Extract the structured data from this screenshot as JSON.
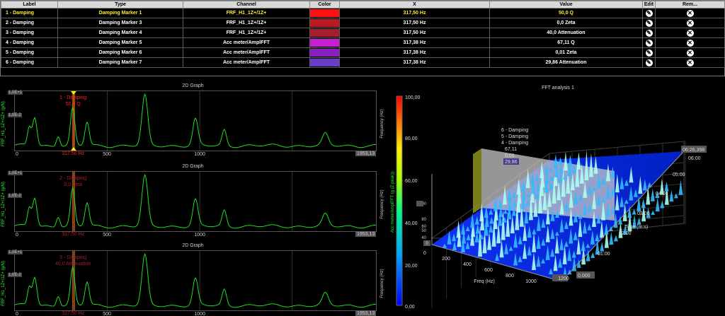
{
  "table": {
    "headers": [
      "Label",
      "Type",
      "Channel",
      "Color",
      "X",
      "Value",
      "Edit",
      "Rem..."
    ],
    "rows": [
      {
        "label": "1 - Damping",
        "type": "Damping Marker 1",
        "channel": "FRF_H1_1Z+/1Z+",
        "color": "#ff1010",
        "x": "317,50 Hz",
        "value": "50,0 Q",
        "selected": true
      },
      {
        "label": "2 - Damping",
        "type": "Damping Marker 3",
        "channel": "FRF_H1_1Z+/1Z+",
        "color": "#bb1a22",
        "x": "317,50 Hz",
        "value": "0,0 Zeta"
      },
      {
        "label": "3 - Damping",
        "type": "Damping Marker 4",
        "channel": "FRF_H1_1Z+/1Z+",
        "color": "#a51f2e",
        "x": "317,50 Hz",
        "value": "40,0 Attenuation"
      },
      {
        "label": "4 - Damping",
        "type": "Damping Marker 5",
        "channel": "Acc meter/AmplFFT",
        "color": "#c41fd0",
        "x": "317,38 Hz",
        "value": "67,11 Q"
      },
      {
        "label": "5 - Damping",
        "type": "Damping Marker 6",
        "channel": "Acc meter/AmplFFT",
        "color": "#8a1fc0",
        "x": "317,38 Hz",
        "value": "0,01 Zeta"
      },
      {
        "label": "6 - Damping",
        "type": "Damping Marker 7",
        "channel": "Acc meter/AmplFFT",
        "color": "#6a3cc8",
        "x": "317,38 Hz",
        "value": "29,86 Attenuation"
      }
    ]
  },
  "graphs2d": [
    {
      "title": "2D Graph",
      "ylabel": "FRF_H1_1Z+/1Z+ (g/N)",
      "yright": "Frequency (Hz)",
      "ymax": "1,0E+1",
      "ymin": "1,0E-2",
      "xticks": [
        "0",
        "500",
        "1000"
      ],
      "xmax": "1953,13",
      "marker_x": "317,50 Hz",
      "marker_label": "1 - Damping",
      "marker_value": "50,0 Q",
      "marker_color": "#ff2222"
    },
    {
      "title": "2D Graph",
      "ylabel": "FRF_H1_1Z+/1Z+ (g/N)",
      "yright": "Frequency (Hz)",
      "ymax": "1,0E+1",
      "ymin": "1,0E-2",
      "xticks": [
        "0",
        "500",
        "1000"
      ],
      "xmax": "1953,13",
      "marker_x": "317,50 Hz",
      "marker_label": "2 - Damping",
      "marker_value": "0,0 Zeta",
      "marker_color": "#bb1a22"
    },
    {
      "title": "2D Graph",
      "ylabel": "FRF_H1_1Z+/1Z+ (g/N)",
      "yright": "Frequency (Hz)",
      "ymax": "1,0E+1",
      "ymin": "1,0E-2",
      "xticks": [
        "0",
        "500",
        "1000"
      ],
      "xmax": "1953,13",
      "marker_x": "317,50 Hz",
      "marker_label": "3 - Damping",
      "marker_value": "40,0 Attenuation",
      "marker_color": "#a51f2e"
    }
  ],
  "graph3d": {
    "title": "FFT analysis 1",
    "colorbar_max": "100,00",
    "colorbar_ticks": [
      "80,00",
      "60,00",
      "40,00",
      "20,00"
    ],
    "colorbar_min": "0,00",
    "colorbar_label": "Acc meter/AmplFFT (g (Z peak))",
    "freq_label_left": "Frequency (Hz)",
    "x_label": "Freq (Hz)",
    "x_ticks": [
      "200",
      "400",
      "600",
      "800",
      "1000"
    ],
    "x_max": "1200",
    "x_min": "0",
    "y_label": "Time (m:s)",
    "time_ticks": [
      "01:00",
      "02:00",
      "03:00",
      "04:00",
      "05:00",
      "06:00"
    ],
    "time_max": "06:26,398",
    "time_min": "0,000",
    "z_ticks": [
      "100",
      "80",
      "60",
      "50",
      "40"
    ],
    "z_zero": "0",
    "marker_labels": [
      {
        "text": "6 - Damping",
        "color": "#8855ff"
      },
      {
        "text": "5 - Damping",
        "color": "#aa33ee"
      },
      {
        "text": "4 - Damping",
        "color": "#dd33ff"
      },
      {
        "text": "67,11",
        "color": "#dd33ff"
      },
      {
        "text": "0,01",
        "color": "#aa33ee"
      },
      {
        "text": "29,86",
        "color": "#ffffff"
      }
    ]
  }
}
